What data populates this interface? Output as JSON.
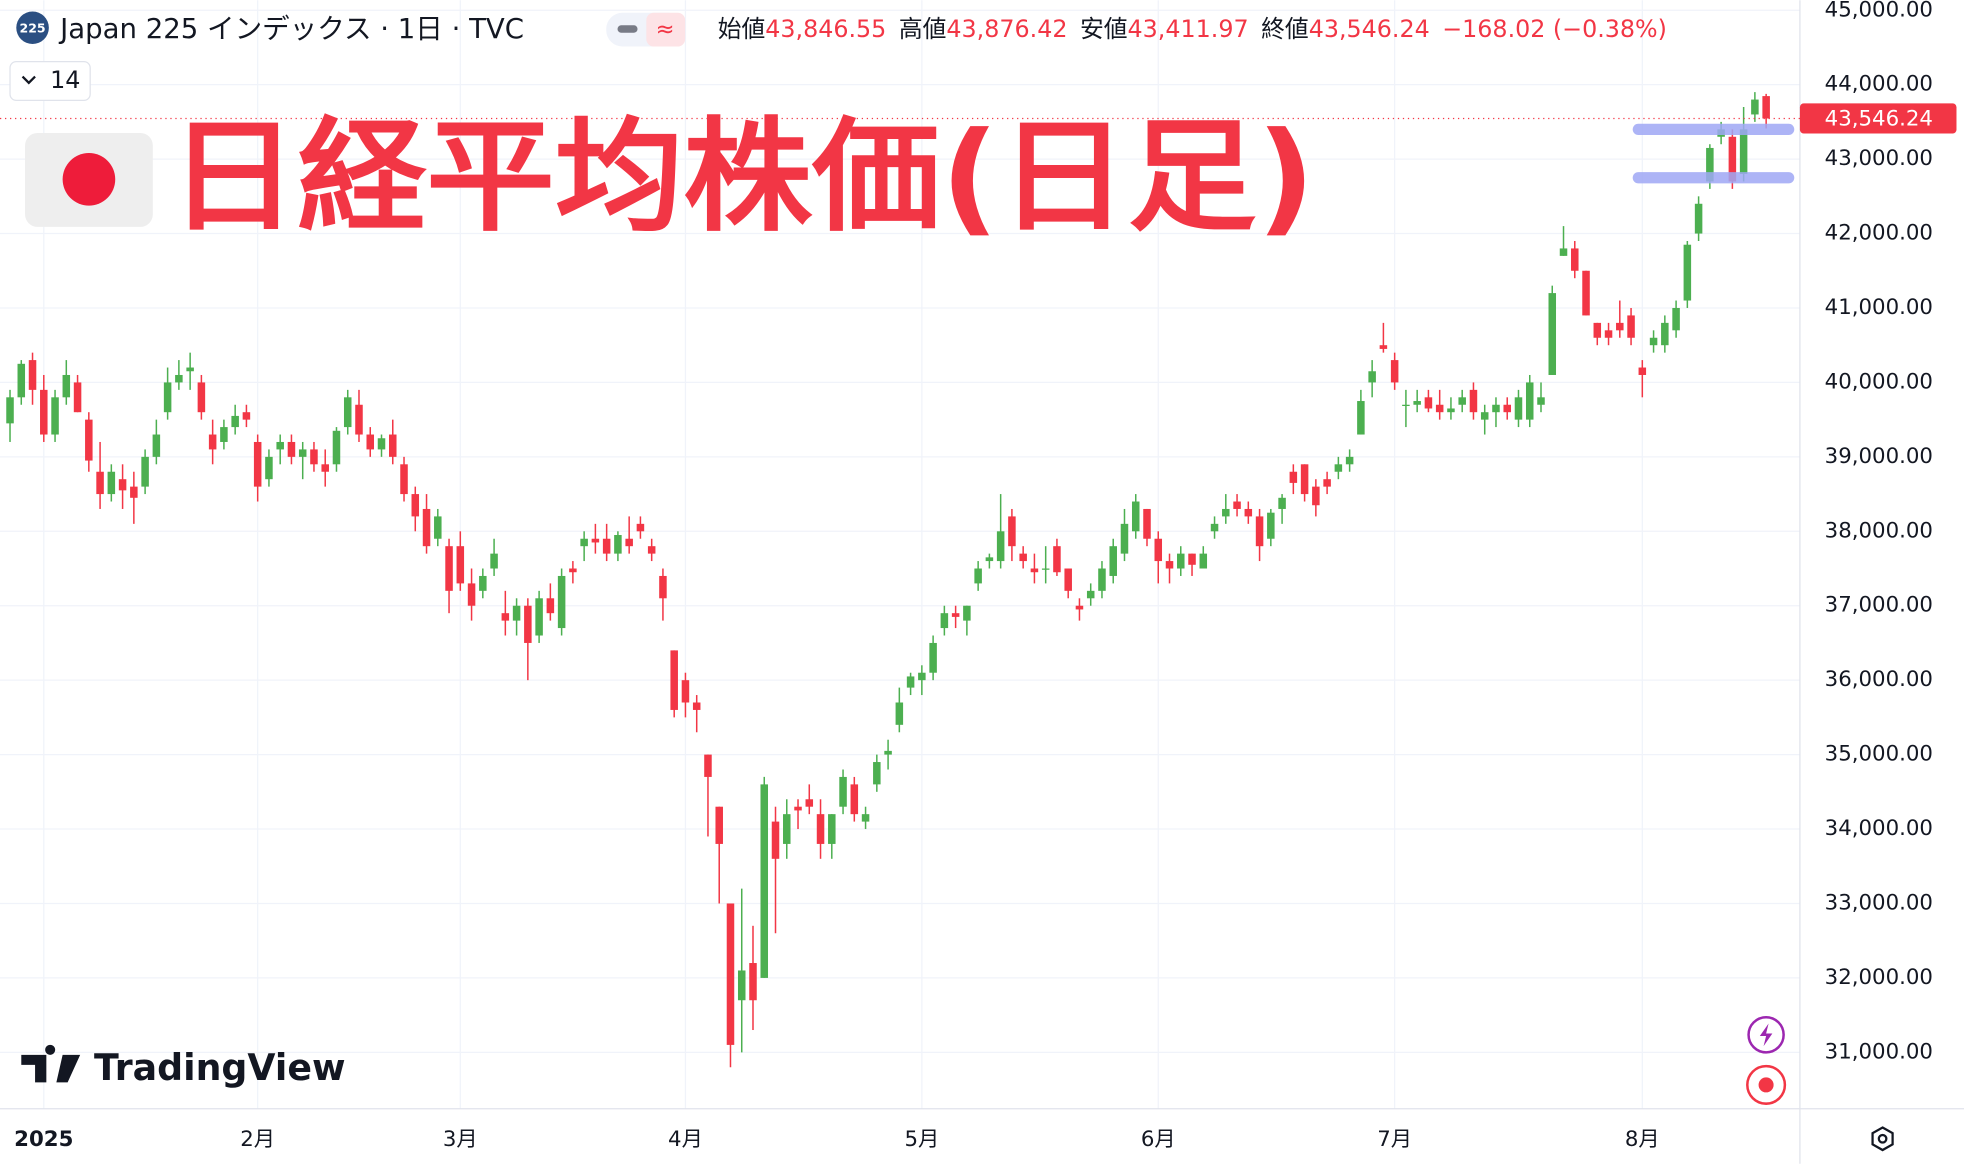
{
  "header": {
    "badge": "225",
    "symbol": "Japan 225 インデックス · 1日 · TVC",
    "interval_box": "14",
    "fields": [
      {
        "label": "始値",
        "value": 43846.55,
        "text": "43,846.55"
      },
      {
        "label": "高値",
        "value": 43876.42,
        "text": "43,876.42"
      },
      {
        "label": "安値",
        "value": 43411.97,
        "text": "43,411.97"
      },
      {
        "label": "終値",
        "value": 43546.24,
        "text": "43,546.24"
      }
    ],
    "change": {
      "value": -168.02,
      "text": "−168.02"
    },
    "change_pct": {
      "value": -0.38,
      "text": "(−0.38%)"
    }
  },
  "brand": "TradingView",
  "chart_data": {
    "type": "candlestick",
    "title": "日経平均株価(日足)",
    "up_color": "#4caf50",
    "down_color": "#f23645",
    "grid": true,
    "ylim": [
      30243,
      45135
    ],
    "xlim": [
      -0.89,
      159
    ],
    "yticks": [
      {
        "value": 31000,
        "label": "31,000.00"
      },
      {
        "value": 32000,
        "label": "32,000.00"
      },
      {
        "value": 33000,
        "label": "33,000.00"
      },
      {
        "value": 34000,
        "label": "34,000.00"
      },
      {
        "value": 35000,
        "label": "35,000.00"
      },
      {
        "value": 36000,
        "label": "36,000.00"
      },
      {
        "value": 37000,
        "label": "37,000.00"
      },
      {
        "value": 38000,
        "label": "38,000.00"
      },
      {
        "value": 39000,
        "label": "39,000.00"
      },
      {
        "value": 40000,
        "label": "40,000.00"
      },
      {
        "value": 41000,
        "label": "41,000.00"
      },
      {
        "value": 42000,
        "label": "42,000.00"
      },
      {
        "value": 43000,
        "label": "43,000.00"
      },
      {
        "value": 44000,
        "label": "44,000.00"
      },
      {
        "value": 45000,
        "label": "45,000.00"
      }
    ],
    "xticks": [
      {
        "value": 3,
        "label": "2025"
      },
      {
        "value": 22,
        "label": "2月"
      },
      {
        "value": 40,
        "label": "3月"
      },
      {
        "value": 60,
        "label": "4月"
      },
      {
        "value": 81,
        "label": "5月"
      },
      {
        "value": 102,
        "label": "6月"
      },
      {
        "value": 123,
        "label": "7月"
      },
      {
        "value": 145,
        "label": "8月"
      }
    ],
    "last_price": {
      "value": 43546.24,
      "label": "43,546.24"
    },
    "drawn_levels": [
      43400,
      42750
    ],
    "ohlc": [
      [
        39450,
        39900,
        39200,
        39800
      ],
      [
        39800,
        40300,
        39700,
        40250
      ],
      [
        40300,
        40400,
        39700,
        39900
      ],
      [
        39900,
        40100,
        39200,
        39300
      ],
      [
        39300,
        39900,
        39200,
        39800
      ],
      [
        39800,
        40300,
        39700,
        40100
      ],
      [
        40000,
        40100,
        39600,
        39600
      ],
      [
        39500,
        39600,
        38800,
        38950
      ],
      [
        38800,
        39200,
        38300,
        38500
      ],
      [
        38500,
        38900,
        38400,
        38800
      ],
      [
        38700,
        38900,
        38300,
        38550
      ],
      [
        38600,
        38800,
        38100,
        38450
      ],
      [
        38600,
        39100,
        38500,
        39000
      ],
      [
        39000,
        39500,
        38900,
        39300
      ],
      [
        39600,
        40200,
        39500,
        40000
      ],
      [
        40000,
        40300,
        39900,
        40100
      ],
      [
        40150,
        40400,
        39900,
        40200
      ],
      [
        40000,
        40100,
        39500,
        39600
      ],
      [
        39300,
        39500,
        38900,
        39100
      ],
      [
        39200,
        39500,
        39100,
        39400
      ],
      [
        39400,
        39700,
        39300,
        39550
      ],
      [
        39600,
        39700,
        39400,
        39500
      ],
      [
        39200,
        39300,
        38400,
        38600
      ],
      [
        38700,
        39100,
        38600,
        39000
      ],
      [
        39100,
        39300,
        38900,
        39200
      ],
      [
        39200,
        39300,
        38900,
        39000
      ],
      [
        39000,
        39200,
        38700,
        39100
      ],
      [
        39100,
        39200,
        38800,
        38900
      ],
      [
        38900,
        39100,
        38600,
        38800
      ],
      [
        38900,
        39400,
        38800,
        39350
      ],
      [
        39400,
        39900,
        39300,
        39800
      ],
      [
        39700,
        39900,
        39200,
        39300
      ],
      [
        39300,
        39400,
        39000,
        39100
      ],
      [
        39100,
        39300,
        39000,
        39250
      ],
      [
        39300,
        39500,
        38900,
        39000
      ],
      [
        38900,
        39000,
        38400,
        38500
      ],
      [
        38500,
        38600,
        38000,
        38200
      ],
      [
        38300,
        38500,
        37700,
        37800
      ],
      [
        37900,
        38300,
        37800,
        38200
      ],
      [
        37800,
        37900,
        36900,
        37200
      ],
      [
        37800,
        38000,
        37200,
        37300
      ],
      [
        37300,
        37500,
        36800,
        37000
      ],
      [
        37200,
        37500,
        37100,
        37400
      ],
      [
        37500,
        37900,
        37400,
        37700
      ],
      [
        36900,
        37200,
        36600,
        36800
      ],
      [
        36800,
        37100,
        36600,
        37000
      ],
      [
        37000,
        37100,
        36000,
        36500
      ],
      [
        36600,
        37200,
        36500,
        37100
      ],
      [
        37100,
        37300,
        36800,
        36900
      ],
      [
        36700,
        37500,
        36600,
        37400
      ],
      [
        37500,
        37600,
        37300,
        37450
      ],
      [
        37800,
        38000,
        37600,
        37900
      ],
      [
        37900,
        38100,
        37700,
        37850
      ],
      [
        37900,
        38100,
        37600,
        37700
      ],
      [
        37700,
        38000,
        37600,
        37950
      ],
      [
        37900,
        38200,
        37700,
        37800
      ],
      [
        38100,
        38200,
        37900,
        38000
      ],
      [
        37800,
        37900,
        37600,
        37700
      ],
      [
        37400,
        37500,
        36800,
        37100
      ],
      [
        36400,
        36400,
        35500,
        35600
      ],
      [
        36000,
        36100,
        35500,
        35700
      ],
      [
        35700,
        35800,
        35300,
        35600
      ],
      [
        35000,
        35000,
        33900,
        34700
      ],
      [
        34300,
        34300,
        33000,
        33800
      ],
      [
        33000,
        33000,
        30800,
        31100
      ],
      [
        31700,
        33200,
        31000,
        32100
      ],
      [
        32200,
        32700,
        31300,
        31700
      ],
      [
        32000,
        34700,
        32000,
        34600
      ],
      [
        34100,
        34300,
        32600,
        33600
      ],
      [
        33800,
        34400,
        33600,
        34200
      ],
      [
        34300,
        34400,
        34000,
        34250
      ],
      [
        34400,
        34600,
        34200,
        34300
      ],
      [
        34200,
        34400,
        33600,
        33800
      ],
      [
        33800,
        34200,
        33600,
        34200
      ],
      [
        34300,
        34800,
        34200,
        34700
      ],
      [
        34600,
        34700,
        34100,
        34200
      ],
      [
        34100,
        34300,
        34000,
        34200
      ],
      [
        34600,
        35000,
        34500,
        34900
      ],
      [
        35000,
        35200,
        34800,
        35050
      ],
      [
        35400,
        35900,
        35300,
        35700
      ],
      [
        35900,
        36100,
        35800,
        36050
      ],
      [
        36000,
        36200,
        35800,
        36100
      ],
      [
        36100,
        36600,
        36000,
        36500
      ],
      [
        36700,
        37000,
        36600,
        36900
      ],
      [
        36900,
        37000,
        36700,
        36850
      ],
      [
        36800,
        37000,
        36600,
        37000
      ],
      [
        37300,
        37600,
        37200,
        37500
      ],
      [
        37600,
        37700,
        37500,
        37650
      ],
      [
        37600,
        38500,
        37500,
        38000
      ],
      [
        38200,
        38300,
        37600,
        37800
      ],
      [
        37700,
        37800,
        37500,
        37600
      ],
      [
        37500,
        37700,
        37300,
        37450
      ],
      [
        37500,
        37800,
        37300,
        37500
      ],
      [
        37800,
        37900,
        37400,
        37450
      ],
      [
        37500,
        37500,
        37100,
        37200
      ],
      [
        37000,
        37100,
        36800,
        36950
      ],
      [
        37100,
        37300,
        37000,
        37200
      ],
      [
        37200,
        37600,
        37100,
        37500
      ],
      [
        37400,
        37900,
        37300,
        37800
      ],
      [
        37700,
        38300,
        37600,
        38100
      ],
      [
        38000,
        38500,
        37900,
        38400
      ],
      [
        38300,
        38300,
        37800,
        37900
      ],
      [
        37900,
        38000,
        37300,
        37600
      ],
      [
        37600,
        37700,
        37300,
        37500
      ],
      [
        37500,
        37800,
        37400,
        37700
      ],
      [
        37700,
        37700,
        37400,
        37550
      ],
      [
        37500,
        37800,
        37500,
        37700
      ],
      [
        38000,
        38200,
        37900,
        38100
      ],
      [
        38200,
        38500,
        38100,
        38300
      ],
      [
        38400,
        38500,
        38200,
        38300
      ],
      [
        38300,
        38400,
        38100,
        38200
      ],
      [
        38200,
        38300,
        37600,
        37800
      ],
      [
        37900,
        38300,
        37800,
        38250
      ],
      [
        38300,
        38500,
        38100,
        38450
      ],
      [
        38800,
        38900,
        38500,
        38650
      ],
      [
        38900,
        38900,
        38400,
        38500
      ],
      [
        38600,
        38700,
        38200,
        38350
      ],
      [
        38700,
        38800,
        38500,
        38600
      ],
      [
        38800,
        39000,
        38700,
        38900
      ],
      [
        38900,
        39100,
        38800,
        39000
      ],
      [
        39300,
        39900,
        39300,
        39750
      ],
      [
        40000,
        40300,
        39800,
        40150
      ],
      [
        40500,
        40800,
        40400,
        40450
      ],
      [
        40300,
        40400,
        39900,
        40000
      ],
      [
        39700,
        39900,
        39400,
        39700
      ],
      [
        39700,
        39900,
        39600,
        39750
      ],
      [
        39800,
        39900,
        39600,
        39650
      ],
      [
        39700,
        39900,
        39500,
        39600
      ],
      [
        39600,
        39800,
        39500,
        39650
      ],
      [
        39700,
        39900,
        39600,
        39800
      ],
      [
        39900,
        40000,
        39500,
        39600
      ],
      [
        39500,
        39700,
        39300,
        39600
      ],
      [
        39600,
        39800,
        39400,
        39700
      ],
      [
        39700,
        39800,
        39500,
        39600
      ],
      [
        39500,
        39900,
        39400,
        39800
      ],
      [
        39500,
        40100,
        39400,
        40000
      ],
      [
        39700,
        40000,
        39600,
        39800
      ],
      [
        40100,
        41300,
        40100,
        41200
      ],
      [
        41700,
        42100,
        41700,
        41800
      ],
      [
        41800,
        41900,
        41400,
        41500
      ],
      [
        41500,
        41500,
        40900,
        40900
      ],
      [
        40800,
        40800,
        40500,
        40600
      ],
      [
        40700,
        40800,
        40500,
        40600
      ],
      [
        40800,
        41100,
        40600,
        40700
      ],
      [
        40900,
        41000,
        40500,
        40600
      ],
      [
        40200,
        40300,
        39800,
        40100
      ],
      [
        40500,
        40700,
        40400,
        40600
      ],
      [
        40500,
        40900,
        40400,
        40800
      ],
      [
        40700,
        41100,
        40600,
        41000
      ],
      [
        41100,
        41900,
        41000,
        41850
      ],
      [
        42000,
        42500,
        41900,
        42400
      ],
      [
        42700,
        43200,
        42600,
        43150
      ],
      [
        43300,
        43500,
        43200,
        43400
      ],
      [
        43300,
        43400,
        42600,
        42700
      ],
      [
        42800,
        43700,
        42700,
        43400
      ],
      [
        43600,
        43900,
        43500,
        43800
      ],
      [
        43846.55,
        43876.42,
        43411.97,
        43546.24
      ]
    ]
  }
}
